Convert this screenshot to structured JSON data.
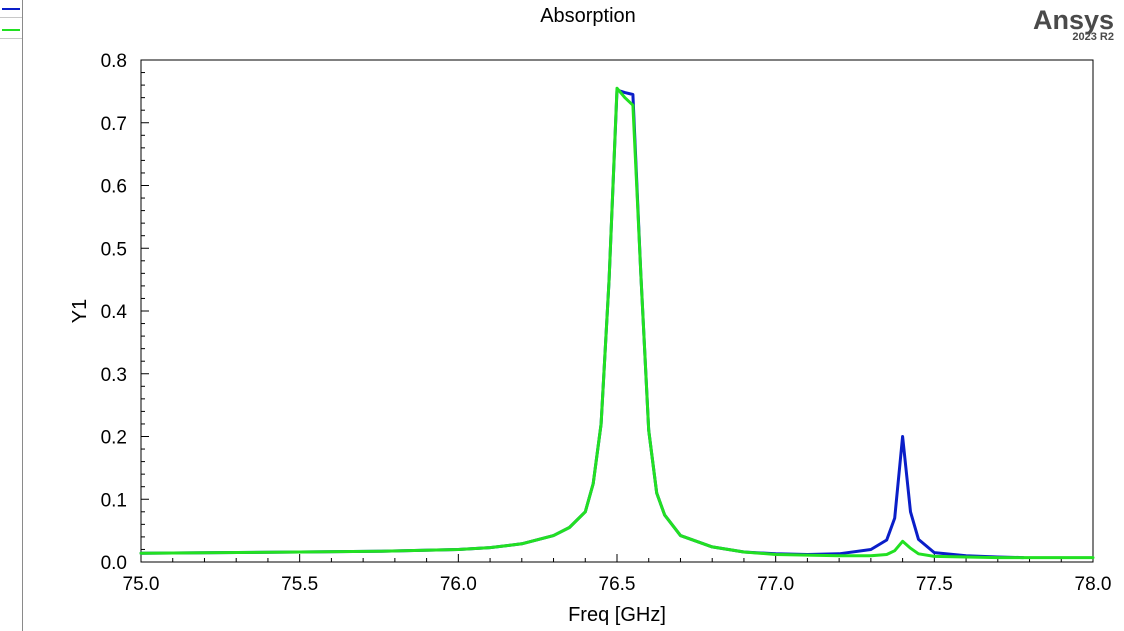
{
  "window": {
    "legend_strip": [
      {
        "color": "#0a1ec8"
      },
      {
        "color": "#22e022"
      }
    ]
  },
  "logo": {
    "name": "Ansys",
    "version": "2023 R2"
  },
  "chart_data": {
    "type": "line",
    "title": "Absorption",
    "xlabel": "Freq [GHz]",
    "ylabel": "Y1",
    "xlim": [
      75.0,
      78.0
    ],
    "ylim": [
      0.0,
      0.8
    ],
    "xticks": [
      "75.0",
      "75.5",
      "76.0",
      "76.5",
      "77.0",
      "77.5",
      "78.0"
    ],
    "yticks": [
      "0.0",
      "0.1",
      "0.2",
      "0.3",
      "0.4",
      "0.5",
      "0.6",
      "0.7",
      "0.8"
    ],
    "grid": false,
    "colors": {
      "series_1": "#0a1ec8",
      "series_2": "#22e022"
    },
    "series": [
      {
        "color": "#0a1ec8",
        "x": [
          75.0,
          75.25,
          75.5,
          75.75,
          76.0,
          76.1,
          76.2,
          76.3,
          76.35,
          76.4,
          76.425,
          76.45,
          76.475,
          76.5,
          76.525,
          76.55,
          76.575,
          76.6,
          76.625,
          76.65,
          76.7,
          76.8,
          76.9,
          77.0,
          77.1,
          77.2,
          77.3,
          77.35,
          77.375,
          77.4,
          77.425,
          77.45,
          77.5,
          77.6,
          77.7,
          77.78
        ],
        "y": [
          0.014,
          0.015,
          0.016,
          0.017,
          0.02,
          0.023,
          0.029,
          0.042,
          0.055,
          0.08,
          0.125,
          0.22,
          0.45,
          0.752,
          0.748,
          0.745,
          0.46,
          0.21,
          0.11,
          0.075,
          0.042,
          0.024,
          0.016,
          0.013,
          0.012,
          0.013,
          0.02,
          0.035,
          0.07,
          0.2,
          0.08,
          0.036,
          0.015,
          0.01,
          0.008,
          0.007
        ]
      },
      {
        "color": "#22e022",
        "x": [
          75.0,
          75.25,
          75.5,
          75.75,
          76.0,
          76.1,
          76.2,
          76.3,
          76.35,
          76.4,
          76.425,
          76.45,
          76.475,
          76.5,
          76.525,
          76.55,
          76.575,
          76.6,
          76.625,
          76.65,
          76.7,
          76.8,
          76.9,
          77.0,
          77.1,
          77.2,
          77.3,
          77.35,
          77.375,
          77.4,
          77.425,
          77.45,
          77.5,
          77.6,
          77.7,
          77.8,
          78.0
        ],
        "y": [
          0.014,
          0.015,
          0.016,
          0.017,
          0.02,
          0.023,
          0.029,
          0.042,
          0.055,
          0.08,
          0.125,
          0.22,
          0.45,
          0.755,
          0.74,
          0.728,
          0.46,
          0.21,
          0.11,
          0.075,
          0.042,
          0.024,
          0.016,
          0.012,
          0.011,
          0.01,
          0.01,
          0.012,
          0.018,
          0.033,
          0.022,
          0.013,
          0.009,
          0.008,
          0.007,
          0.007,
          0.007
        ]
      }
    ]
  }
}
